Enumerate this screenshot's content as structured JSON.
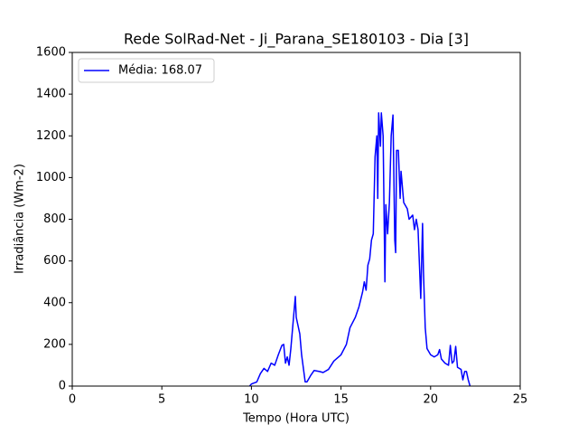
{
  "chart_data": {
    "type": "line",
    "title": "Rede SolRad-Net - Ji_Parana_SE180103 - Dia [3]",
    "xlabel": "Tempo (Hora UTC)",
    "ylabel": "Irradiância (Wm-2)",
    "x": [
      9.9,
      10.0,
      10.3,
      10.5,
      10.7,
      10.9,
      11.1,
      11.3,
      11.5,
      11.7,
      11.8,
      11.9,
      12.0,
      12.1,
      12.2,
      12.3,
      12.4,
      12.45,
      12.5,
      12.6,
      12.7,
      12.8,
      13.0,
      13.1,
      13.3,
      13.5,
      13.8,
      14.0,
      14.3,
      14.6,
      15.0,
      15.3,
      15.5,
      15.8,
      16.0,
      16.2,
      16.3,
      16.4,
      16.5,
      16.6,
      16.7,
      16.8,
      16.9,
      17.0,
      17.05,
      17.1,
      17.2,
      17.25,
      17.35,
      17.45,
      17.5,
      17.6,
      17.7,
      17.8,
      17.9,
      18.0,
      18.05,
      18.1,
      18.2,
      18.3,
      18.35,
      18.5,
      18.7,
      18.8,
      19.0,
      19.1,
      19.2,
      19.3,
      19.4,
      19.45,
      19.55,
      19.6,
      19.7,
      19.8,
      20.0,
      20.2,
      20.4,
      20.5,
      20.6,
      20.8,
      21.0,
      21.1,
      21.2,
      21.3,
      21.4,
      21.5,
      21.7,
      21.8,
      21.9,
      22.0,
      22.1,
      22.2
    ],
    "series": [
      {
        "name": "Média: 168.07",
        "color": "#0000ff",
        "values": [
          0,
          10,
          20,
          60,
          85,
          70,
          110,
          100,
          150,
          195,
          200,
          110,
          140,
          100,
          180,
          280,
          380,
          430,
          330,
          290,
          250,
          150,
          20,
          20,
          50,
          75,
          70,
          65,
          80,
          120,
          150,
          200,
          280,
          330,
          380,
          450,
          500,
          460,
          580,
          610,
          700,
          730,
          1100,
          1200,
          900,
          1310,
          1150,
          1310,
          1200,
          500,
          870,
          730,
          880,
          1200,
          1300,
          700,
          640,
          1130,
          1130,
          900,
          1030,
          880,
          850,
          800,
          820,
          750,
          800,
          750,
          530,
          420,
          780,
          550,
          280,
          180,
          150,
          140,
          150,
          175,
          130,
          110,
          100,
          195,
          110,
          120,
          190,
          90,
          80,
          30,
          70,
          70,
          30,
          0
        ]
      }
    ],
    "xlim": [
      0,
      25
    ],
    "ylim": [
      0,
      1600
    ],
    "xticks": [
      0,
      5,
      10,
      15,
      20,
      25
    ],
    "yticks": [
      0,
      200,
      400,
      600,
      800,
      1000,
      1200,
      1400,
      1600
    ],
    "legend": "upper left"
  }
}
